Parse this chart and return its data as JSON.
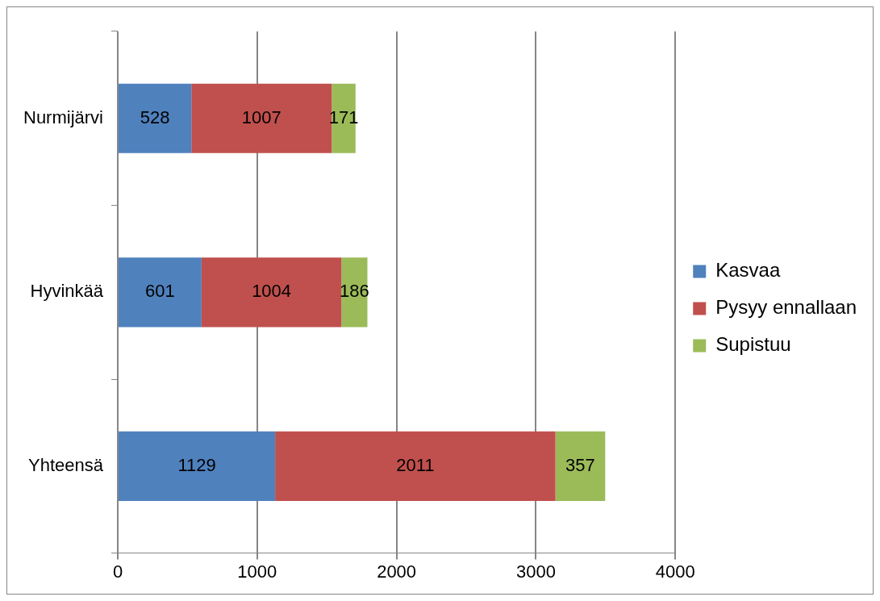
{
  "chart_data": {
    "type": "bar",
    "orientation": "horizontal",
    "stacked": true,
    "categories": [
      "Nurmijärvi",
      "Hyvinkää",
      "Yhteensä"
    ],
    "series": [
      {
        "name": "Kasvaa",
        "color": "#4f81bd",
        "values": [
          528,
          601,
          1129
        ]
      },
      {
        "name": "Pysyy ennallaan",
        "color": "#c0504d",
        "values": [
          1007,
          1004,
          2011
        ]
      },
      {
        "name": "Supistuu",
        "color": "#9bbb59",
        "values": [
          171,
          186,
          357
        ]
      }
    ],
    "xlim": [
      0,
      4000
    ],
    "xticks": [
      0,
      1000,
      2000,
      3000,
      4000
    ],
    "grid": "x",
    "legend": "right",
    "data_labels": true
  }
}
